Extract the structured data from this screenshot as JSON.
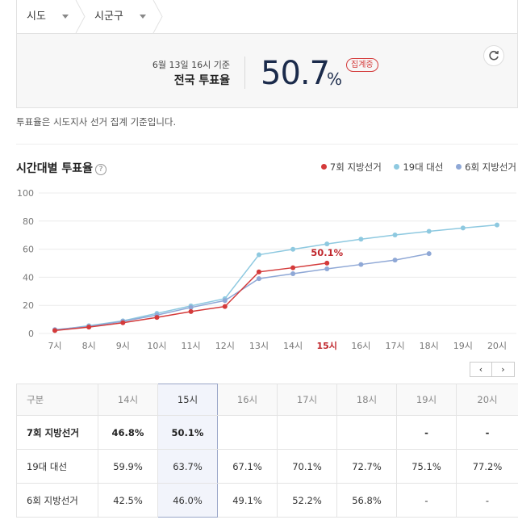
{
  "selectors": [
    {
      "label": "시도"
    },
    {
      "label": "시군구"
    }
  ],
  "rate_box": {
    "basis": "6월 13일 16시 기준",
    "scope": "전국 투표율",
    "value": "50.7",
    "unit": "%",
    "status": "집계중"
  },
  "note": "투표율은 시도지사 선거 집계 기준입니다.",
  "chart_title": "시간대별 투표율",
  "help_label": "?",
  "legend": [
    {
      "name": "7회 지방선거",
      "color": "#d43a3a"
    },
    {
      "name": "19대 대선",
      "color": "#8ec9e0"
    },
    {
      "name": "6회 지방선거",
      "color": "#8fa8d6"
    }
  ],
  "pager": {
    "prev": "‹",
    "next": "›"
  },
  "chart_data": {
    "type": "line",
    "x": [
      "7시",
      "8시",
      "9시",
      "10시",
      "11시",
      "12시",
      "13시",
      "14시",
      "15시",
      "16시",
      "17시",
      "18시",
      "19시",
      "20시"
    ],
    "highlight_x": "15시",
    "ylim": [
      0,
      100
    ],
    "yticks": [
      0,
      20,
      40,
      60,
      80,
      100
    ],
    "grid": true,
    "legend_position": "top-right",
    "series": [
      {
        "name": "7회 지방선거",
        "color": "#d43a3a",
        "values": [
          2.1,
          4.5,
          7.6,
          11.4,
          15.6,
          19.2,
          43.8,
          46.8,
          50.1,
          null,
          null,
          null,
          null,
          null
        ]
      },
      {
        "name": "19대 대선",
        "color": "#8ec9e0",
        "values": [
          2.2,
          5.5,
          9.0,
          14.3,
          19.6,
          24.8,
          56.0,
          59.9,
          63.7,
          67.1,
          70.1,
          72.7,
          75.1,
          77.2
        ]
      },
      {
        "name": "6회 지방선거",
        "color": "#8fa8d6",
        "values": [
          2.7,
          5.0,
          8.6,
          13.1,
          18.5,
          23.4,
          39.0,
          42.5,
          46.0,
          49.1,
          52.2,
          56.8,
          null,
          null
        ]
      }
    ],
    "annotation": {
      "series": "7회 지방선거",
      "x": "15시",
      "text": "50.1%"
    }
  },
  "table": {
    "header_label": "구분",
    "columns": [
      "14시",
      "15시",
      "16시",
      "17시",
      "18시",
      "19시",
      "20시"
    ],
    "highlight_column": "15시",
    "rows": [
      {
        "label": "7회 지방선거",
        "cells": [
          "46.8%",
          "50.1%",
          "",
          "",
          "",
          "-",
          "-"
        ]
      },
      {
        "label": "19대 대선",
        "cells": [
          "59.9%",
          "63.7%",
          "67.1%",
          "70.1%",
          "72.7%",
          "75.1%",
          "77.2%"
        ]
      },
      {
        "label": "6회 지방선거",
        "cells": [
          "42.5%",
          "46.0%",
          "49.1%",
          "52.2%",
          "56.8%",
          "-",
          "-"
        ]
      }
    ]
  }
}
